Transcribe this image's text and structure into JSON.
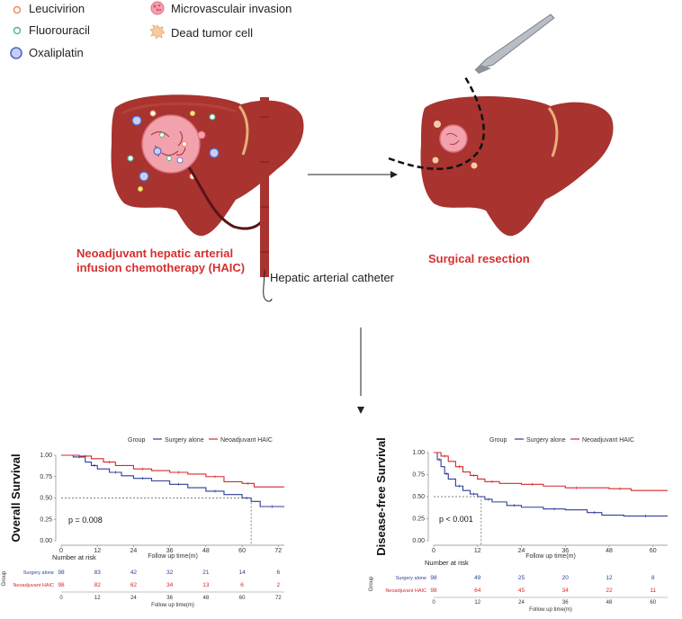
{
  "legend": {
    "items": [
      {
        "label": "Leucivirion",
        "color": "#f08a5a"
      },
      {
        "label": "Fluorouracil",
        "color": "#4fb98a"
      },
      {
        "label": "Oxaliplatin",
        "color": "#7080d8"
      },
      {
        "label": "Microvasculair invasion",
        "color": "#e46a82"
      },
      {
        "label": "Dead tumor cell",
        "color": "#f2b98a"
      }
    ]
  },
  "diagram": {
    "left_caption_line1": "Neoadjuvant hepatic arterial",
    "left_caption_line2": "infusion chemotherapy (HAIC)",
    "catheter_label": "Hepatic arterial catheter",
    "right_caption": "Surgical resection",
    "colors": {
      "liver": "#a8332f",
      "caption": "#d62f2f",
      "surgery_alone": "#2f3d9a",
      "haic": "#d42a2a"
    }
  },
  "chart_data": [
    {
      "type": "line",
      "title": "",
      "ylabel": "Overall Survival",
      "xlabel": "Follow up time(m)",
      "legend_title": "Group",
      "legend_position": "top",
      "ylim": [
        0,
        1
      ],
      "xlim": [
        0,
        74
      ],
      "xticks": [
        0,
        12,
        24,
        36,
        48,
        60,
        72
      ],
      "yticks": [
        "0.00",
        "0.25",
        "0.50",
        "0.75",
        "1.00"
      ],
      "annotation": "p = 0.008",
      "median_line": {
        "y": 0.5,
        "x": 63
      },
      "series": [
        {
          "name": "Surgery alone",
          "color": "#2f3d9a",
          "x": [
            0,
            4,
            8,
            10,
            12,
            16,
            20,
            24,
            30,
            36,
            42,
            48,
            54,
            60,
            63,
            66,
            74
          ],
          "y": [
            1.0,
            0.98,
            0.92,
            0.88,
            0.84,
            0.8,
            0.76,
            0.73,
            0.7,
            0.66,
            0.62,
            0.58,
            0.54,
            0.5,
            0.46,
            0.4,
            0.4
          ]
        },
        {
          "name": "Neoadjuvant HAIC",
          "color": "#d42a2a",
          "x": [
            0,
            6,
            10,
            14,
            18,
            24,
            30,
            36,
            42,
            48,
            54,
            60,
            64,
            74
          ],
          "y": [
            1.0,
            0.99,
            0.96,
            0.92,
            0.88,
            0.84,
            0.82,
            0.8,
            0.78,
            0.75,
            0.69,
            0.67,
            0.63,
            0.63
          ]
        }
      ],
      "risk_table": {
        "title": "Number at risk",
        "group_label": "Group",
        "xticks": [
          0,
          12,
          24,
          36,
          48,
          60,
          72
        ],
        "xlabel": "Follow up time(m)",
        "rows": [
          {
            "name": "Surgery alone",
            "color": "#2f3d9a",
            "values": [
              "98",
              "83",
              "42",
              "32",
              "21",
              "14",
              "6"
            ]
          },
          {
            "name": "Neoadjuvant HAIC",
            "color": "#d42a2a",
            "values": [
              "98",
              "82",
              "62",
              "34",
              "13",
              "6",
              "2"
            ]
          }
        ]
      }
    },
    {
      "type": "line",
      "title": "",
      "ylabel": "Disease-free Survival",
      "xlabel": "Follow up time(m)",
      "legend_title": "Group",
      "legend_position": "top",
      "ylim": [
        0,
        1
      ],
      "xlim": [
        0,
        64
      ],
      "xticks": [
        0,
        12,
        24,
        36,
        48,
        60
      ],
      "yticks": [
        "0.00",
        "0.25",
        "0.50",
        "0.75",
        "1.00"
      ],
      "annotation": "p < 0.001",
      "median_line": {
        "y": 0.5,
        "x": 13
      },
      "series": [
        {
          "name": "Surgery alone",
          "color": "#2f3d9a",
          "x": [
            0,
            1,
            2,
            3,
            4,
            6,
            8,
            10,
            12,
            14,
            16,
            20,
            24,
            30,
            36,
            42,
            46,
            52,
            64
          ],
          "y": [
            1.0,
            0.92,
            0.84,
            0.76,
            0.7,
            0.62,
            0.57,
            0.53,
            0.5,
            0.47,
            0.44,
            0.4,
            0.38,
            0.36,
            0.35,
            0.32,
            0.29,
            0.28,
            0.28
          ]
        },
        {
          "name": "Neoadjuvant HAIC",
          "color": "#d42a2a",
          "x": [
            0,
            2,
            4,
            6,
            8,
            10,
            12,
            14,
            18,
            24,
            30,
            36,
            42,
            48,
            54,
            64
          ],
          "y": [
            1.0,
            0.96,
            0.9,
            0.84,
            0.78,
            0.74,
            0.7,
            0.67,
            0.65,
            0.64,
            0.62,
            0.6,
            0.6,
            0.59,
            0.57,
            0.57
          ]
        }
      ],
      "risk_table": {
        "title": "Number at risk",
        "group_label": "Group",
        "xticks": [
          0,
          12,
          24,
          36,
          48,
          60
        ],
        "xlabel": "Follow up time(m)",
        "rows": [
          {
            "name": "Surgery alone",
            "color": "#2f3d9a",
            "values": [
              "98",
              "49",
              "25",
              "20",
              "12",
              "8"
            ]
          },
          {
            "name": "Neoadjuvant HAIC",
            "color": "#d42a2a",
            "values": [
              "98",
              "64",
              "45",
              "34",
              "22",
              "11"
            ]
          }
        ]
      }
    }
  ]
}
